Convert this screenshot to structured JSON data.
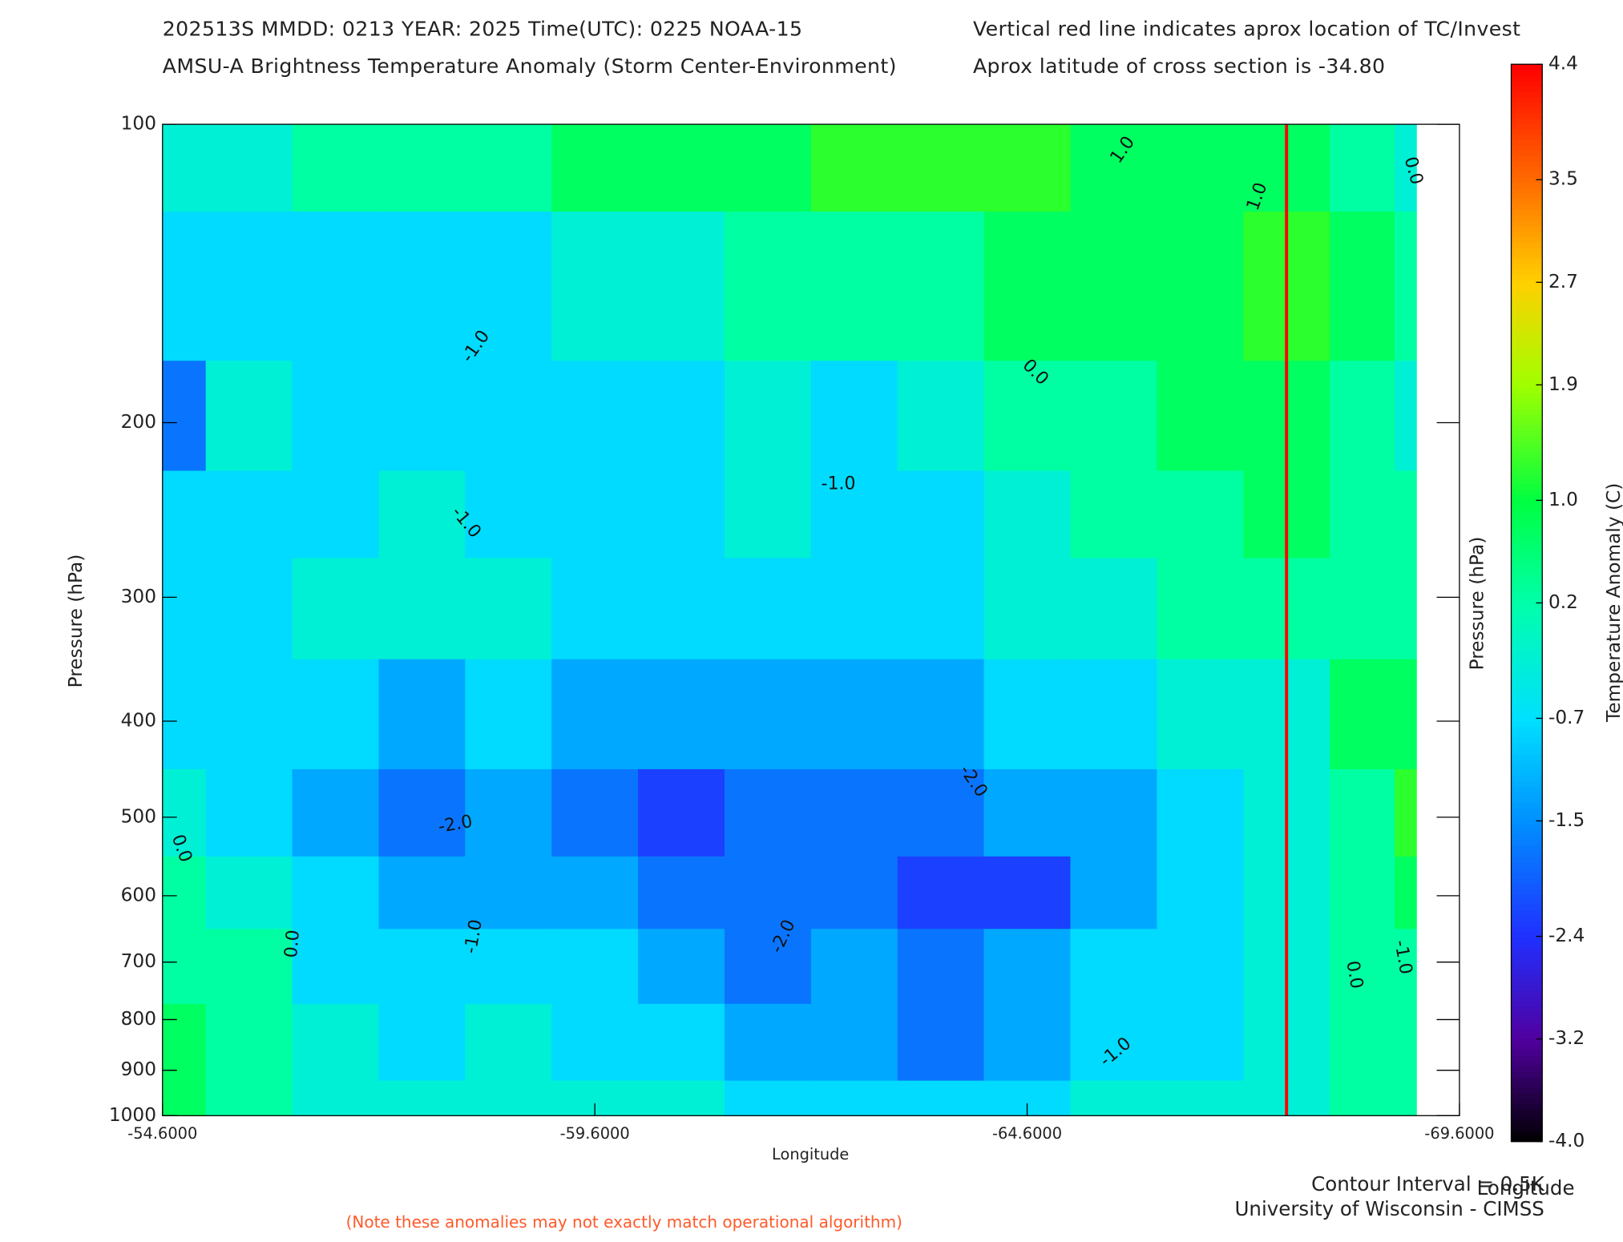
{
  "chart_data": {
    "type": "contour",
    "header_line_1": "202513S  MMDD: 0213 YEAR: 2025 Time(UTC): 0225 NOAA-15",
    "header_line_2": "AMSU-A Brightness Temperature Anomaly (Storm Center-Environment)",
    "header_note_1": "Vertical red line indicates aprox location of TC/Invest",
    "header_note_2": "Aprox latitude of cross section is -34.80",
    "xlabel": "Longitude",
    "xlabel_2": "Longitude",
    "ylabel": "Pressure (hPa)",
    "y2label": "Pressure (hPa)",
    "colorbar_label": "Temperature Anomaly (C)",
    "contour_interval_text": "Contour Interval = 0.5K",
    "credit": "University of Wisconsin - CIMSS",
    "footnote": "(Note these anomalies may not exactly match operational algorithm)",
    "xlim": [
      -54.6,
      -69.6
    ],
    "xticks": [
      {
        "value": -54.6,
        "label": "-54.6000"
      },
      {
        "value": -59.6,
        "label": "-59.6000"
      },
      {
        "value": -64.6,
        "label": "-64.6000"
      },
      {
        "value": -69.6,
        "label": "-69.6000"
      }
    ],
    "ylim": [
      1000,
      100
    ],
    "ylog": true,
    "yticks": [
      100,
      200,
      300,
      400,
      500,
      600,
      700,
      800,
      900,
      1000
    ],
    "tc_longitude": -67.6,
    "tc_line_color": "#ff0000",
    "x": [
      -54.6,
      -55.6,
      -56.6,
      -57.6,
      -58.6,
      -59.6,
      -60.6,
      -61.6,
      -62.6,
      -63.6,
      -64.6,
      -65.6,
      -66.6,
      -67.6,
      -68.6,
      -69.1
    ],
    "levels": [
      100,
      150,
      200,
      250,
      300,
      400,
      500,
      600,
      700,
      850,
      1000
    ],
    "z": [
      [
        -0.3,
        -0.4,
        0.1,
        0.2,
        0.3,
        0.5,
        0.6,
        0.8,
        1.0,
        1.2,
        1.1,
        0.9,
        0.6,
        0.8,
        0.3,
        -0.2
      ],
      [
        -0.8,
        -0.6,
        -0.7,
        -0.9,
        -0.6,
        -0.4,
        -0.3,
        0.1,
        0.3,
        0.4,
        0.6,
        0.5,
        0.8,
        1.1,
        0.5,
        0.0
      ],
      [
        -1.6,
        -0.4,
        -0.7,
        -0.8,
        -0.6,
        -0.9,
        -0.6,
        -0.4,
        -0.7,
        -0.3,
        0.1,
        0.3,
        0.5,
        0.6,
        0.3,
        -0.1
      ],
      [
        -0.8,
        -0.9,
        -0.8,
        -0.4,
        -0.8,
        -0.8,
        -0.7,
        -0.3,
        -0.6,
        -0.7,
        -0.2,
        0.1,
        0.3,
        0.6,
        0.3,
        0.1
      ],
      [
        -0.7,
        -0.7,
        -0.4,
        -0.3,
        -0.5,
        -0.6,
        -0.9,
        -0.7,
        -0.6,
        -0.7,
        -0.4,
        -0.1,
        0.2,
        0.2,
        0.4,
        0.1
      ],
      [
        -0.6,
        -0.8,
        -0.8,
        -1.1,
        -0.7,
        -1.1,
        -1.2,
        -1.3,
        -1.2,
        -1.1,
        -0.8,
        -0.6,
        -0.3,
        -0.2,
        0.5,
        0.6
      ],
      [
        -0.3,
        -0.7,
        -1.2,
        -1.8,
        -1.2,
        -1.7,
        -2.1,
        -1.6,
        -1.7,
        -1.8,
        -1.4,
        -1.1,
        -0.6,
        -0.4,
        0.4,
        1.1
      ],
      [
        0.1,
        -0.3,
        -0.8,
        -1.2,
        -1.1,
        -1.1,
        -1.6,
        -1.8,
        -1.6,
        -2.3,
        -2.2,
        -1.2,
        -0.8,
        -0.3,
        0.2,
        0.6
      ],
      [
        0.3,
        0.0,
        -0.7,
        -0.8,
        -0.7,
        -1.0,
        -1.4,
        -1.9,
        -1.5,
        -1.6,
        -1.3,
        -1.0,
        -0.7,
        -0.3,
        0.1,
        0.4
      ],
      [
        0.5,
        0.1,
        -0.4,
        -0.6,
        -0.5,
        -0.8,
        -1.0,
        -1.2,
        -1.4,
        -1.6,
        -1.1,
        -0.8,
        -0.6,
        -0.3,
        0.1,
        0.3
      ],
      [
        0.6,
        0.2,
        -0.2,
        -0.4,
        -0.3,
        -0.4,
        -0.5,
        -0.6,
        -0.8,
        -0.8,
        -0.6,
        -0.4,
        -0.4,
        -0.3,
        0.2,
        0.3
      ]
    ],
    "contour_step": 0.5,
    "clim": [
      -4.0,
      4.4
    ],
    "colorbar_ticks": [
      4.4,
      3.5,
      2.7,
      1.9,
      {
        "value": 1.0,
        "label": "1.0"
      },
      0.2,
      -0.7,
      -1.5,
      -2.4,
      -3.2,
      {
        "value": -4.0,
        "label": "-4.0"
      }
    ],
    "colormap": [
      "#ff0000",
      "#ff6a00",
      "#ffd000",
      "#a0ff00",
      "#00ff40",
      "#00ffaa",
      "#00e0ff",
      "#0090ff",
      "#2030ff",
      "#5000a0",
      "#000000"
    ],
    "contour_labels": [
      {
        "value": 1.0,
        "label": "1.0"
      },
      {
        "value": 1.0,
        "label": "1.0"
      },
      {
        "value": 0.0,
        "label": "0.0"
      },
      {
        "value": -1.0,
        "label": "-1.0"
      },
      {
        "value": 0.0,
        "label": "0.0"
      },
      {
        "value": -1.0,
        "label": "-1.0"
      },
      {
        "value": -1.0,
        "label": "-1.0"
      },
      {
        "value": -2.0,
        "label": "-2.0"
      },
      {
        "value": -2.0,
        "label": "-2.0"
      },
      {
        "value": 0.0,
        "label": "0.0"
      },
      {
        "value": 0.0,
        "label": "0.0"
      },
      {
        "value": -1.0,
        "label": "-1.0"
      },
      {
        "value": -2.0,
        "label": "-2.0"
      },
      {
        "value": 0.0,
        "label": "0.0"
      },
      {
        "value": -1.0,
        "label": "-1.0"
      },
      {
        "value": -1.0,
        "label": "-1.0"
      }
    ]
  }
}
